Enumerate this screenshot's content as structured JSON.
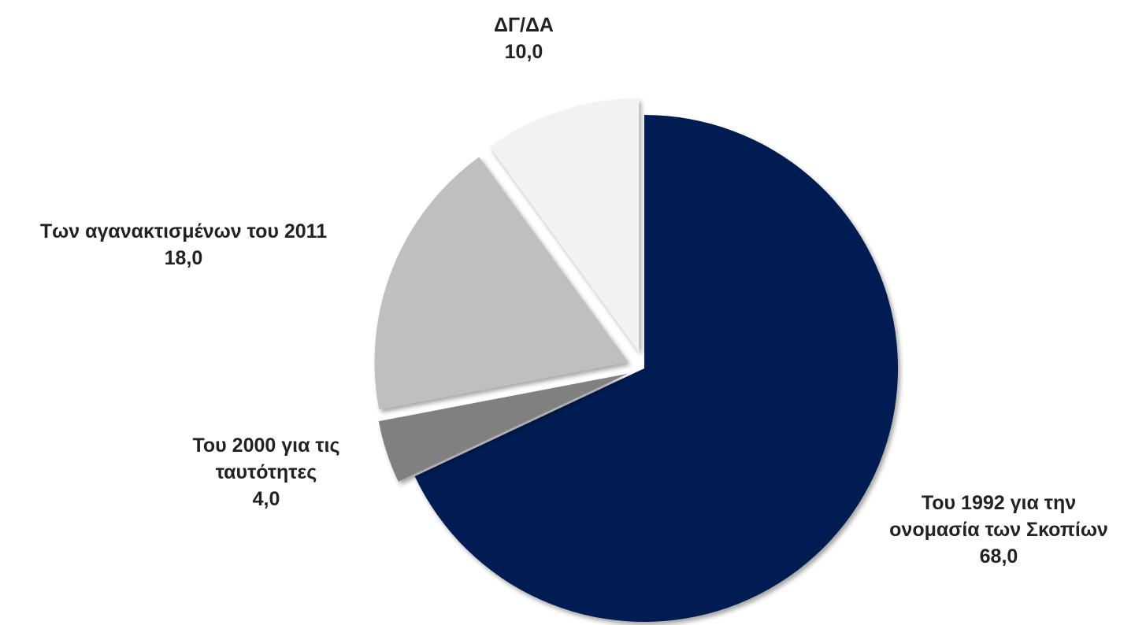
{
  "chart_data": {
    "type": "pie",
    "title": "",
    "start_angle_deg": 0,
    "direction": "clockwise",
    "slices": [
      {
        "label_lines": [
          "Του 1992 για την",
          "ονομασία των Σκοπίων"
        ],
        "value_text": "68,0",
        "value": 68.0,
        "color": "#021a52",
        "exploded": false
      },
      {
        "label_lines": [
          "Του 2000 για τις",
          "ταυτότητες"
        ],
        "value_text": "4,0",
        "value": 4.0,
        "color": "#808080",
        "exploded": true
      },
      {
        "label_lines": [
          "Των αγανακτισμένων του 2011"
        ],
        "value_text": "18,0",
        "value": 18.0,
        "color": "#bfbfbf",
        "exploded": true
      },
      {
        "label_lines": [
          "ΔΓ/ΔΑ"
        ],
        "value_text": "10,0",
        "value": 10.0,
        "color": "#f2f2f2",
        "exploded": true
      }
    ]
  }
}
